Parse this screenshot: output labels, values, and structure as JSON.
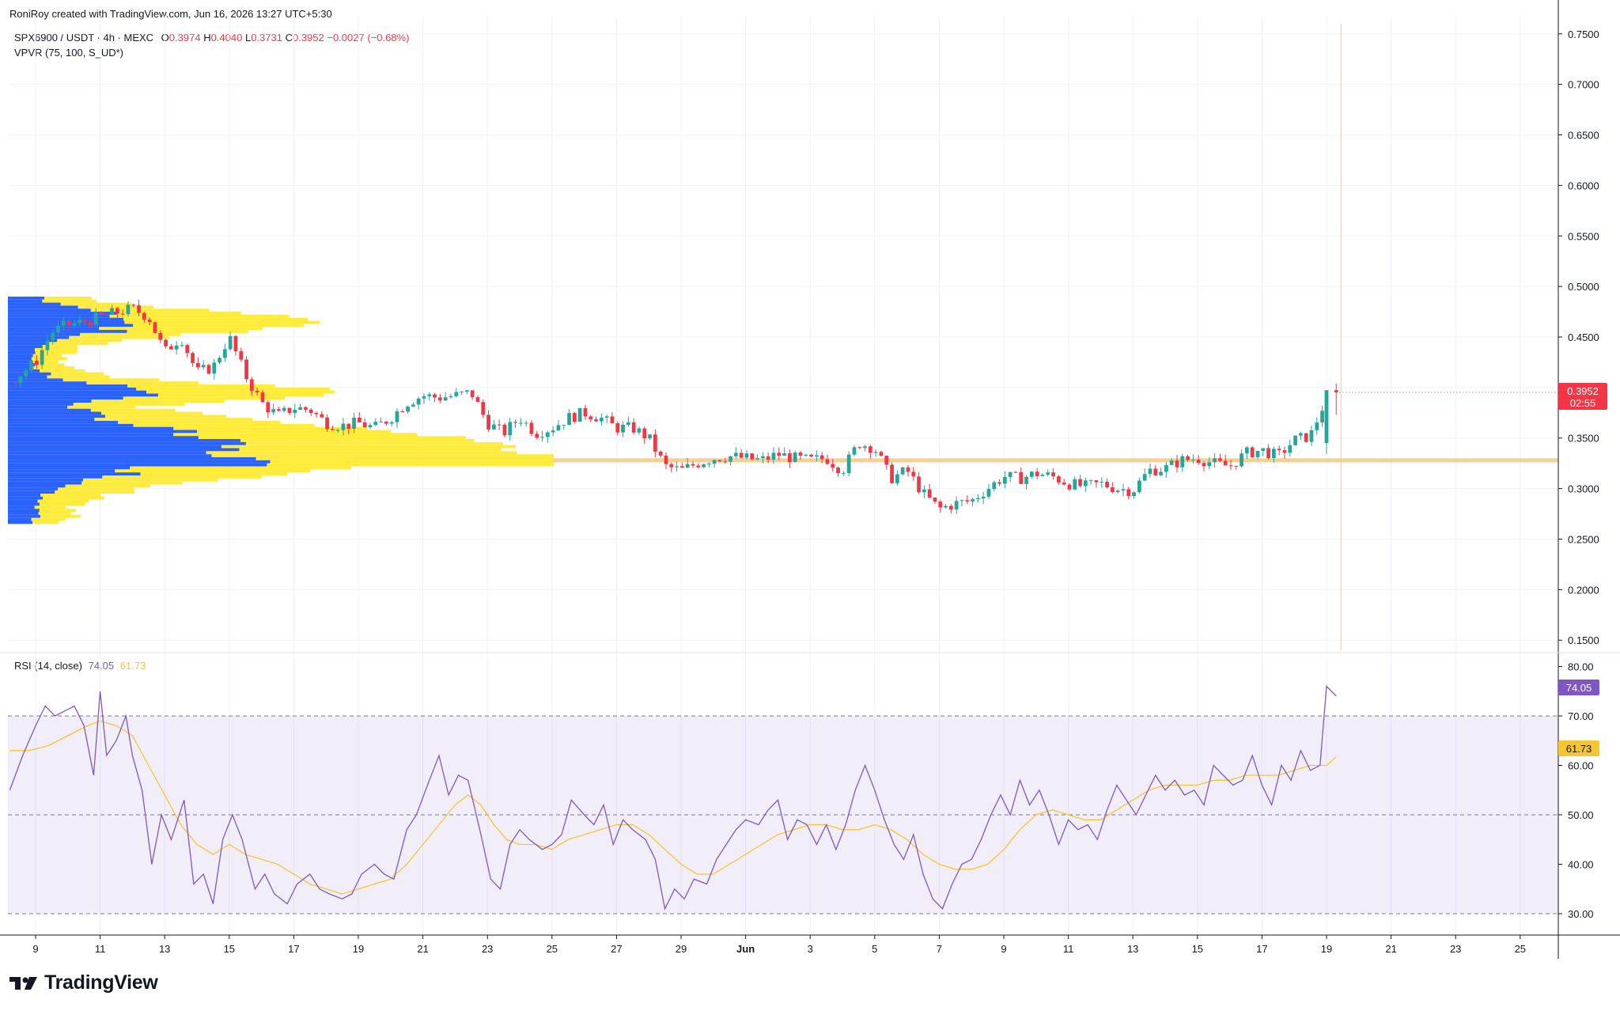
{
  "header": {
    "attribution": "RoniRoy created with TradingView.com, Jun 16, 2026 13:27 UTC+5:30"
  },
  "legend": {
    "symbol": "SPX6900 / USDT · 4h · MEXC",
    "o_label": "O",
    "o_value": "0.3974",
    "h_label": "H",
    "h_value": "0.4040",
    "l_label": "L",
    "l_value": "0.3731",
    "c_label": "C",
    "c_value": "0.3952",
    "change": "−0.0027 (−0.68%)",
    "indicator": "VPVR (75, 100, S_UD*)"
  },
  "rsi_legend": {
    "label": "RSI (14, close)",
    "rsi_value": "74.05",
    "ma_value": "61.73"
  },
  "price_badge": {
    "price": "0.3952",
    "countdown": "02:55"
  },
  "rsi_badges": {
    "rsi": "74.05",
    "ma": "61.73"
  },
  "brand": {
    "name": "TradingView"
  },
  "colors": {
    "up": "#26a69a",
    "down": "#f23645",
    "vp_up": "#2962ff",
    "vp_down": "#ffeb3b",
    "poc": "#f7c77a",
    "rsi": "#7e57c2",
    "rsi_ma": "#f7c531",
    "rsi_band": "#7e57c2"
  },
  "chart_data": [
    {
      "type": "candlestick",
      "symbol": "SPX6900 / USDT",
      "timeframe": "4h",
      "exchange": "MEXC",
      "y_axis_ticks": [
        "0.7500",
        "0.7000",
        "0.6500",
        "0.6000",
        "0.5500",
        "0.5000",
        "0.4500",
        "0.4000",
        "0.3500",
        "0.3000",
        "0.2500",
        "0.2000",
        "0.1500"
      ],
      "ylim": [
        0.14,
        0.76
      ],
      "x_axis_ticks": [
        "9",
        "11",
        "13",
        "15",
        "17",
        "19",
        "21",
        "23",
        "25",
        "27",
        "29",
        "Jun",
        "3",
        "5",
        "7",
        "9",
        "11",
        "13",
        "15",
        "17",
        "19",
        "21",
        "23",
        "25"
      ],
      "x_range_days": [
        8.2,
        57.1
      ],
      "poc_level": 0.328,
      "last": {
        "open": 0.3974,
        "high": 0.404,
        "low": 0.3731,
        "close": 0.3952
      },
      "close_path": [
        [
          8.2,
          0.405
        ],
        [
          9.0,
          0.425
        ],
        [
          9.5,
          0.455
        ],
        [
          10.0,
          0.462
        ],
        [
          10.5,
          0.465
        ],
        [
          11.0,
          0.47
        ],
        [
          11.6,
          0.475
        ],
        [
          12.0,
          0.478
        ],
        [
          12.5,
          0.47
        ],
        [
          13.0,
          0.435
        ],
        [
          13.5,
          0.45
        ],
        [
          14.0,
          0.415
        ],
        [
          14.5,
          0.42
        ],
        [
          15.0,
          0.45
        ],
        [
          15.5,
          0.412
        ],
        [
          16.0,
          0.385
        ],
        [
          16.5,
          0.372
        ],
        [
          17.0,
          0.38
        ],
        [
          17.5,
          0.378
        ],
        [
          18.0,
          0.365
        ],
        [
          18.5,
          0.362
        ],
        [
          19.0,
          0.365
        ],
        [
          19.5,
          0.36
        ],
        [
          20.0,
          0.37
        ],
        [
          20.5,
          0.385
        ],
        [
          21.0,
          0.392
        ],
        [
          21.5,
          0.39
        ],
        [
          22.0,
          0.392
        ],
        [
          22.5,
          0.395
        ],
        [
          23.0,
          0.365
        ],
        [
          23.5,
          0.355
        ],
        [
          24.0,
          0.37
        ],
        [
          24.5,
          0.355
        ],
        [
          25.0,
          0.36
        ],
        [
          25.5,
          0.37
        ],
        [
          26.0,
          0.375
        ],
        [
          26.5,
          0.37
        ],
        [
          27.0,
          0.36
        ],
        [
          27.5,
          0.36
        ],
        [
          28.0,
          0.35
        ],
        [
          28.5,
          0.322
        ],
        [
          29.0,
          0.318
        ],
        [
          29.5,
          0.325
        ],
        [
          30.0,
          0.33
        ],
        [
          30.5,
          0.332
        ],
        [
          31.0,
          0.33
        ],
        [
          31.5,
          0.328
        ],
        [
          32.0,
          0.334
        ],
        [
          32.5,
          0.33
        ],
        [
          33.0,
          0.328
        ],
        [
          33.5,
          0.33
        ],
        [
          34.0,
          0.318
        ],
        [
          34.5,
          0.345
        ],
        [
          35.0,
          0.34
        ],
        [
          35.5,
          0.31
        ],
        [
          36.0,
          0.318
        ],
        [
          36.5,
          0.295
        ],
        [
          37.0,
          0.28
        ],
        [
          37.5,
          0.285
        ],
        [
          38.0,
          0.288
        ],
        [
          38.5,
          0.3
        ],
        [
          39.0,
          0.312
        ],
        [
          39.5,
          0.31
        ],
        [
          40.0,
          0.315
        ],
        [
          40.5,
          0.312
        ],
        [
          41.0,
          0.305
        ],
        [
          41.5,
          0.302
        ],
        [
          42.0,
          0.305
        ],
        [
          42.5,
          0.3
        ],
        [
          43.0,
          0.298
        ],
        [
          43.5,
          0.318
        ],
        [
          44.0,
          0.32
        ],
        [
          44.5,
          0.328
        ],
        [
          45.0,
          0.33
        ],
        [
          45.5,
          0.325
        ],
        [
          46.0,
          0.322
        ],
        [
          46.5,
          0.335
        ],
        [
          47.0,
          0.338
        ],
        [
          47.5,
          0.332
        ],
        [
          48.0,
          0.348
        ],
        [
          48.5,
          0.352
        ],
        [
          49.0,
          0.39
        ],
        [
          49.3,
          0.3952
        ]
      ]
    },
    {
      "type": "volume_profile",
      "name": "VPVR (75, 100, S_UD*)",
      "price_range": [
        0.265,
        0.49
      ],
      "anchor": "left"
    },
    {
      "type": "line",
      "name": "RSI (14, close)",
      "ylim": [
        26,
        82
      ],
      "y_axis_ticks": [
        "80.00",
        "70.00",
        "60.00",
        "50.00",
        "40.00",
        "30.00"
      ],
      "band": [
        30,
        70
      ],
      "midline": 50,
      "rsi_value": 74.05,
      "ma_value": 61.73,
      "rsi": [
        [
          8.2,
          55
        ],
        [
          8.6,
          62
        ],
        [
          9.0,
          68
        ],
        [
          9.3,
          72
        ],
        [
          9.6,
          70
        ],
        [
          9.9,
          71
        ],
        [
          10.2,
          72
        ],
        [
          10.5,
          68
        ],
        [
          10.8,
          58
        ],
        [
          11.0,
          75
        ],
        [
          11.2,
          62
        ],
        [
          11.5,
          65
        ],
        [
          11.8,
          70
        ],
        [
          12.0,
          62
        ],
        [
          12.3,
          55
        ],
        [
          12.6,
          40
        ],
        [
          12.9,
          50
        ],
        [
          13.2,
          45
        ],
        [
          13.6,
          53
        ],
        [
          13.9,
          36
        ],
        [
          14.2,
          38
        ],
        [
          14.5,
          32
        ],
        [
          14.8,
          45
        ],
        [
          15.1,
          50
        ],
        [
          15.4,
          45
        ],
        [
          15.8,
          35
        ],
        [
          16.1,
          38
        ],
        [
          16.4,
          34
        ],
        [
          16.8,
          32
        ],
        [
          17.1,
          36
        ],
        [
          17.5,
          38
        ],
        [
          17.8,
          35
        ],
        [
          18.1,
          34
        ],
        [
          18.5,
          33
        ],
        [
          18.8,
          34
        ],
        [
          19.1,
          38
        ],
        [
          19.5,
          40
        ],
        [
          19.8,
          38
        ],
        [
          20.1,
          37
        ],
        [
          20.5,
          47
        ],
        [
          20.8,
          50
        ],
        [
          21.2,
          57
        ],
        [
          21.5,
          62
        ],
        [
          21.8,
          54
        ],
        [
          22.1,
          58
        ],
        [
          22.4,
          57
        ],
        [
          22.8,
          46
        ],
        [
          23.1,
          37
        ],
        [
          23.4,
          35
        ],
        [
          23.7,
          44
        ],
        [
          24.0,
          47
        ],
        [
          24.3,
          45
        ],
        [
          24.7,
          43
        ],
        [
          25.0,
          44
        ],
        [
          25.3,
          46
        ],
        [
          25.6,
          53
        ],
        [
          26.0,
          50
        ],
        [
          26.3,
          48
        ],
        [
          26.6,
          52
        ],
        [
          26.9,
          44
        ],
        [
          27.2,
          49
        ],
        [
          27.5,
          47
        ],
        [
          27.9,
          45
        ],
        [
          28.2,
          41
        ],
        [
          28.5,
          31
        ],
        [
          28.8,
          35
        ],
        [
          29.1,
          33
        ],
        [
          29.4,
          37
        ],
        [
          29.8,
          36
        ],
        [
          30.1,
          41
        ],
        [
          30.4,
          44
        ],
        [
          30.7,
          47
        ],
        [
          31.0,
          49
        ],
        [
          31.4,
          48
        ],
        [
          31.7,
          51
        ],
        [
          32.0,
          53
        ],
        [
          32.3,
          45
        ],
        [
          32.6,
          49
        ],
        [
          32.9,
          48
        ],
        [
          33.2,
          44
        ],
        [
          33.5,
          48
        ],
        [
          33.8,
          43
        ],
        [
          34.1,
          48
        ],
        [
          34.4,
          55
        ],
        [
          34.7,
          60
        ],
        [
          35.0,
          55
        ],
        [
          35.3,
          49
        ],
        [
          35.6,
          44
        ],
        [
          35.9,
          41
        ],
        [
          36.2,
          46
        ],
        [
          36.5,
          38
        ],
        [
          36.8,
          33
        ],
        [
          37.1,
          31
        ],
        [
          37.4,
          36
        ],
        [
          37.7,
          40
        ],
        [
          38.0,
          41
        ],
        [
          38.3,
          45
        ],
        [
          38.6,
          50
        ],
        [
          38.9,
          54
        ],
        [
          39.2,
          50
        ],
        [
          39.5,
          57
        ],
        [
          39.8,
          52
        ],
        [
          40.1,
          55
        ],
        [
          40.4,
          50
        ],
        [
          40.7,
          44
        ],
        [
          41.0,
          49
        ],
        [
          41.3,
          47
        ],
        [
          41.6,
          48
        ],
        [
          41.9,
          45
        ],
        [
          42.2,
          51
        ],
        [
          42.5,
          56
        ],
        [
          42.8,
          53
        ],
        [
          43.1,
          50
        ],
        [
          43.4,
          54
        ],
        [
          43.7,
          58
        ],
        [
          44.0,
          55
        ],
        [
          44.3,
          57
        ],
        [
          44.6,
          54
        ],
        [
          44.9,
          55
        ],
        [
          45.2,
          52
        ],
        [
          45.5,
          60
        ],
        [
          45.8,
          58
        ],
        [
          46.1,
          56
        ],
        [
          46.4,
          57
        ],
        [
          46.7,
          62
        ],
        [
          47.0,
          56
        ],
        [
          47.3,
          52
        ],
        [
          47.6,
          60
        ],
        [
          47.9,
          57
        ],
        [
          48.2,
          63
        ],
        [
          48.5,
          59
        ],
        [
          48.8,
          60
        ],
        [
          49.0,
          76
        ],
        [
          49.3,
          74
        ]
      ],
      "rsi_ma": [
        [
          8.2,
          63
        ],
        [
          8.8,
          63
        ],
        [
          9.4,
          64
        ],
        [
          10.0,
          66
        ],
        [
          10.6,
          68
        ],
        [
          11.0,
          69
        ],
        [
          11.5,
          68
        ],
        [
          12.0,
          66
        ],
        [
          12.5,
          60
        ],
        [
          13.0,
          54
        ],
        [
          13.5,
          48
        ],
        [
          14.0,
          44
        ],
        [
          14.5,
          42
        ],
        [
          15.0,
          44
        ],
        [
          15.5,
          42
        ],
        [
          16.0,
          41
        ],
        [
          16.5,
          40
        ],
        [
          17.0,
          38
        ],
        [
          17.5,
          36
        ],
        [
          18.0,
          35
        ],
        [
          18.5,
          34
        ],
        [
          19.0,
          35
        ],
        [
          19.5,
          36
        ],
        [
          20.0,
          37
        ],
        [
          20.5,
          40
        ],
        [
          21.0,
          44
        ],
        [
          21.5,
          48
        ],
        [
          22.0,
          52
        ],
        [
          22.4,
          54
        ],
        [
          22.8,
          52
        ],
        [
          23.2,
          48
        ],
        [
          23.6,
          45
        ],
        [
          24.0,
          44
        ],
        [
          24.5,
          44
        ],
        [
          25.0,
          43
        ],
        [
          25.5,
          45
        ],
        [
          26.0,
          46
        ],
        [
          26.5,
          47
        ],
        [
          27.0,
          48
        ],
        [
          27.5,
          48
        ],
        [
          28.0,
          46
        ],
        [
          28.5,
          43
        ],
        [
          29.0,
          40
        ],
        [
          29.5,
          38
        ],
        [
          30.0,
          38
        ],
        [
          30.5,
          40
        ],
        [
          31.0,
          42
        ],
        [
          31.5,
          44
        ],
        [
          32.0,
          46
        ],
        [
          32.5,
          47
        ],
        [
          33.0,
          48
        ],
        [
          33.5,
          48
        ],
        [
          34.0,
          47
        ],
        [
          34.5,
          47
        ],
        [
          35.0,
          48
        ],
        [
          35.5,
          47
        ],
        [
          36.0,
          45
        ],
        [
          36.5,
          42
        ],
        [
          37.0,
          40
        ],
        [
          37.5,
          39
        ],
        [
          38.0,
          39
        ],
        [
          38.5,
          40
        ],
        [
          39.0,
          43
        ],
        [
          39.5,
          47
        ],
        [
          40.0,
          50
        ],
        [
          40.5,
          51
        ],
        [
          41.0,
          50
        ],
        [
          41.5,
          49
        ],
        [
          42.0,
          49
        ],
        [
          42.5,
          51
        ],
        [
          43.0,
          53
        ],
        [
          43.5,
          55
        ],
        [
          44.0,
          56
        ],
        [
          44.5,
          56
        ],
        [
          45.0,
          56
        ],
        [
          45.5,
          57
        ],
        [
          46.0,
          57
        ],
        [
          46.5,
          58
        ],
        [
          47.0,
          58
        ],
        [
          47.5,
          58
        ],
        [
          48.0,
          59
        ],
        [
          48.5,
          60
        ],
        [
          49.0,
          60
        ],
        [
          49.3,
          61.73
        ]
      ]
    }
  ]
}
